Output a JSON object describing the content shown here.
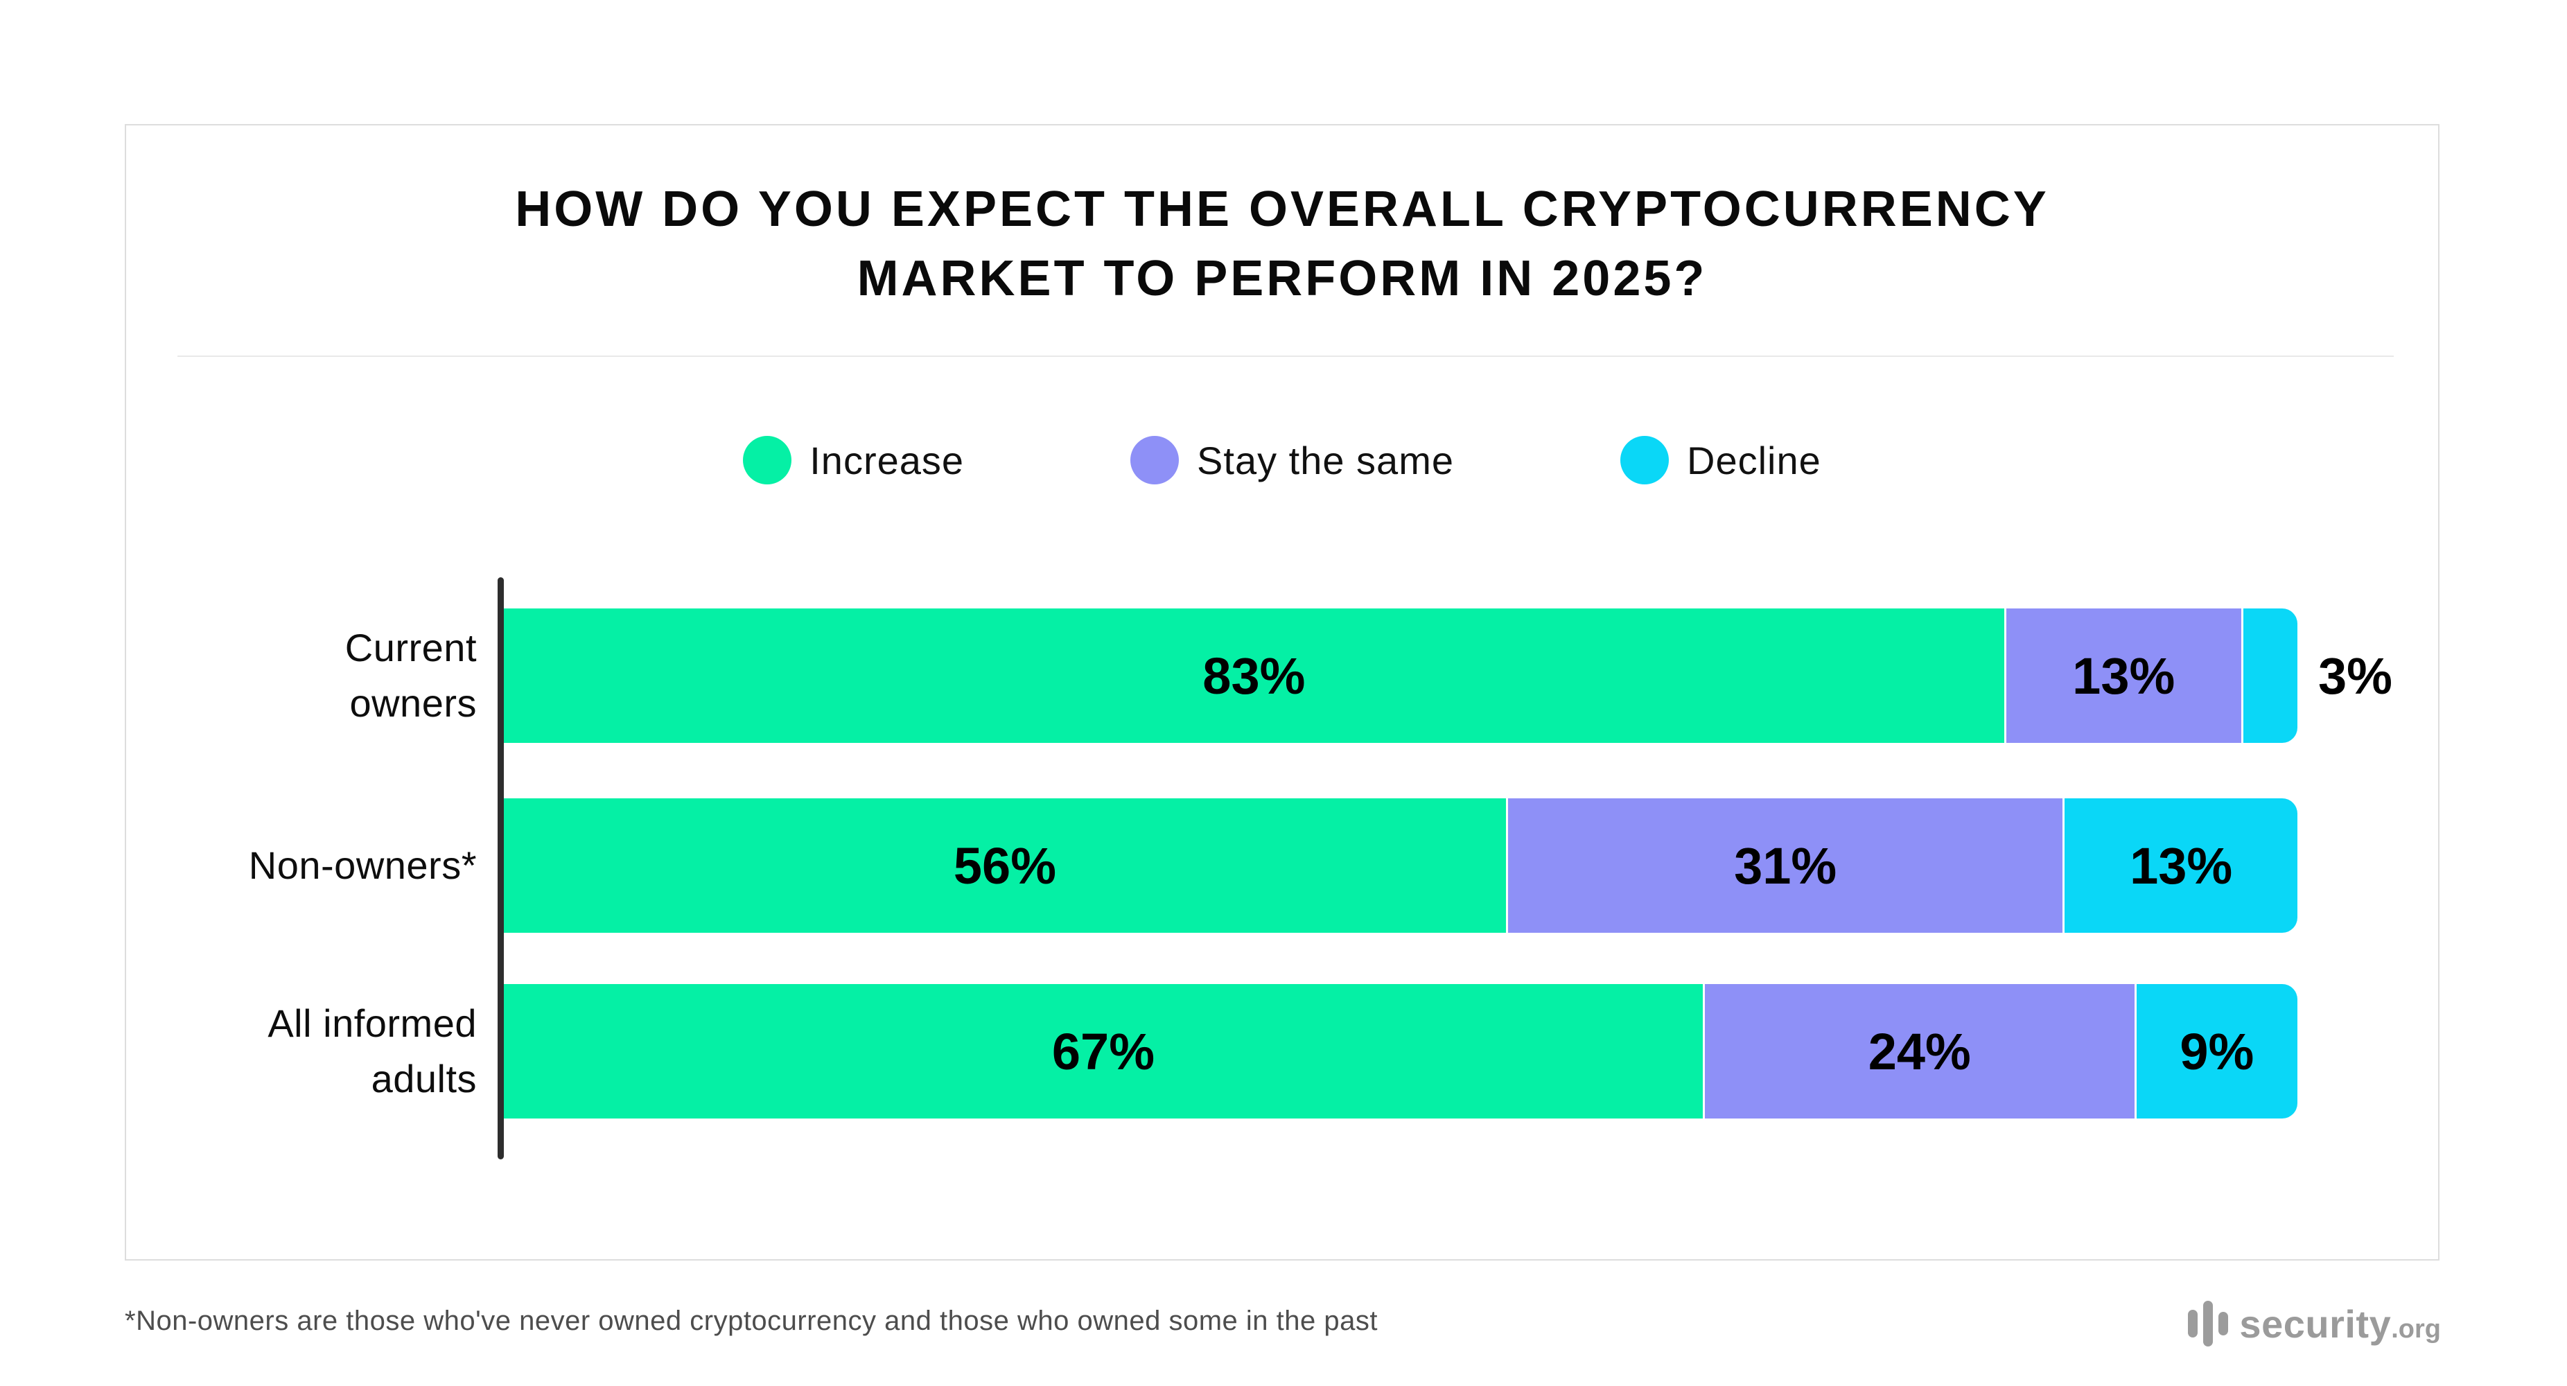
{
  "title": {
    "line1": "HOW DO YOU EXPECT THE OVERALL CRYPTOCURRENCY",
    "line2": "MARKET TO PERFORM IN 2025?"
  },
  "legend": {
    "items": [
      {
        "label": "Increase",
        "color": "#05F0A5"
      },
      {
        "label": "Stay the same",
        "color": "#8E90F7"
      },
      {
        "label": "Decline",
        "color": "#0AD7F7"
      }
    ]
  },
  "chart_data": {
    "type": "bar",
    "orientation": "horizontal",
    "stacked": true,
    "title": "HOW DO YOU EXPECT THE OVERALL CRYPTOCURRENCY MARKET TO PERFORM IN 2025?",
    "categories": [
      "Current owners",
      "Non-owners*",
      "All informed adults"
    ],
    "category_display": [
      "Current\nowners",
      "Non-owners*",
      "All informed\nadults"
    ],
    "series": [
      {
        "name": "Increase",
        "color": "#05F0A5",
        "values": [
          83,
          56,
          67
        ]
      },
      {
        "name": "Stay the same",
        "color": "#8E90F7",
        "values": [
          13,
          31,
          24
        ]
      },
      {
        "name": "Decline",
        "color": "#0AD7F7",
        "values": [
          3,
          13,
          9
        ]
      }
    ],
    "value_suffix": "%",
    "xlim": [
      0,
      100
    ],
    "grid": false,
    "legend_position": "top",
    "axis_line_color": "#2d2d2d"
  },
  "footnote": "*Non-owners are those who've never owned cryptocurrency and those who owned some in the past",
  "logo": {
    "brand": "security",
    "tld": ".org"
  }
}
